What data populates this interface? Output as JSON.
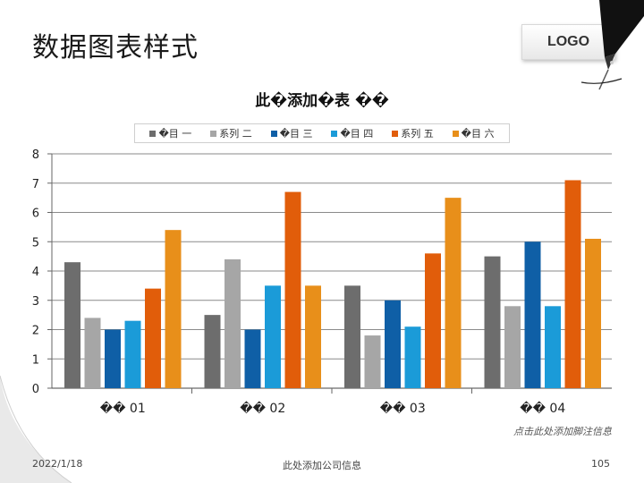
{
  "slide": {
    "title": "数据图表样式",
    "logo_text": "LOGO",
    "chart_note": "点击此处添加脚注信息",
    "date": "2022/1/18",
    "company": "此处添加公司信息",
    "page_number": "105"
  },
  "chart_data": {
    "type": "bar",
    "title": "此�添加�表 ��",
    "categories": [
      "�� 01",
      "�� 02",
      "�� 03",
      "�� 04"
    ],
    "ylim": [
      0,
      8
    ],
    "yticks": [
      0,
      1,
      2,
      3,
      4,
      5,
      6,
      7,
      8
    ],
    "grid": true,
    "legend_position": "top",
    "series": [
      {
        "name": "�目 一",
        "color": "#6d6d6d",
        "values": [
          4.3,
          2.5,
          3.5,
          4.5
        ]
      },
      {
        "name": "系列 二",
        "color": "#a6a6a6",
        "values": [
          2.4,
          4.4,
          1.8,
          2.8
        ]
      },
      {
        "name": "�目 三",
        "color": "#0f5fa6",
        "values": [
          2.0,
          2.0,
          3.0,
          5.0
        ]
      },
      {
        "name": "�目 四",
        "color": "#1b9bd8",
        "values": [
          2.3,
          3.5,
          2.1,
          2.8
        ]
      },
      {
        "name": "系列 五",
        "color": "#e15d0a",
        "values": [
          3.4,
          6.7,
          4.6,
          7.1
        ]
      },
      {
        "name": "�目 六",
        "color": "#e88f1a",
        "values": [
          5.4,
          3.5,
          6.5,
          5.1
        ]
      }
    ]
  }
}
